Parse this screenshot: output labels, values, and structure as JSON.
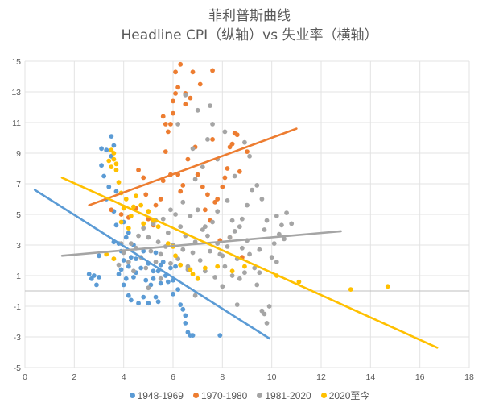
{
  "chart_data": {
    "type": "scatter",
    "title": "菲利普斯曲线",
    "subtitle": "Headline CPI（纵轴）vs 失业率（横轴）",
    "xlim": [
      0,
      18
    ],
    "ylim": [
      -5,
      15
    ],
    "x_ticks": [
      0,
      2,
      4,
      6,
      8,
      10,
      12,
      14,
      16,
      18
    ],
    "y_ticks": [
      -5,
      -3,
      -1,
      1,
      3,
      5,
      7,
      9,
      11,
      13,
      15
    ],
    "grid": true,
    "legend_position": "bottom",
    "series": [
      {
        "name": "1948-1969",
        "color": "#5B9BD5",
        "trendline": [
          [
            0.4,
            6.6
          ],
          [
            9.9,
            -3.1
          ]
        ],
        "points": [
          [
            2.6,
            1.1
          ],
          [
            2.7,
            0.8
          ],
          [
            2.8,
            1.0
          ],
          [
            2.9,
            0.4
          ],
          [
            3.0,
            2.3
          ],
          [
            3.0,
            0.9
          ],
          [
            3.1,
            9.3
          ],
          [
            3.2,
            7.5
          ],
          [
            3.3,
            9.2
          ],
          [
            3.4,
            6.8
          ],
          [
            3.5,
            10.1
          ],
          [
            3.5,
            8.8
          ],
          [
            3.6,
            9.5
          ],
          [
            3.6,
            3.2
          ],
          [
            3.7,
            6.5
          ],
          [
            3.7,
            4.3
          ],
          [
            3.8,
            3.1
          ],
          [
            3.8,
            1.1
          ],
          [
            3.9,
            2.6
          ],
          [
            3.9,
            1.4
          ],
          [
            4.0,
            0.4
          ],
          [
            4.0,
            2.0
          ],
          [
            4.1,
            0.8
          ],
          [
            4.1,
            3.5
          ],
          [
            4.2,
            -0.3
          ],
          [
            4.2,
            1.6
          ],
          [
            4.3,
            -0.6
          ],
          [
            4.3,
            2.2
          ],
          [
            4.4,
            0.9
          ],
          [
            4.4,
            3.0
          ],
          [
            4.5,
            1.2
          ],
          [
            4.5,
            2.1
          ],
          [
            4.6,
            -0.8
          ],
          [
            4.7,
            1.5
          ],
          [
            4.8,
            -0.4
          ],
          [
            4.9,
            0.7
          ],
          [
            5.0,
            -0.8
          ],
          [
            5.0,
            1.8
          ],
          [
            5.1,
            0.4
          ],
          [
            5.2,
            0.8
          ],
          [
            5.3,
            -0.4
          ],
          [
            5.3,
            2.5
          ],
          [
            5.4,
            1.3
          ],
          [
            5.4,
            -0.7
          ],
          [
            5.5,
            0.5
          ],
          [
            5.5,
            1.7
          ],
          [
            5.6,
            1.9
          ],
          [
            5.7,
            1.0
          ],
          [
            5.8,
            0.6
          ],
          [
            5.9,
            1.5
          ],
          [
            6.0,
            0.7
          ],
          [
            6.0,
            -0.2
          ],
          [
            6.1,
            1.6
          ],
          [
            6.2,
            0.1
          ],
          [
            6.3,
            -0.9
          ],
          [
            6.4,
            -1.2
          ],
          [
            6.5,
            -1.6
          ],
          [
            6.5,
            -2.1
          ],
          [
            6.6,
            -2.7
          ],
          [
            6.7,
            -2.9
          ],
          [
            6.8,
            -2.9
          ],
          [
            7.9,
            -2.9
          ],
          [
            4.0,
            4.5
          ],
          [
            3.6,
            5.2
          ],
          [
            4.2,
            3.8
          ],
          [
            4.8,
            2.6
          ],
          [
            5.2,
            1.3
          ],
          [
            3.3,
            6.0
          ],
          [
            3.1,
            8.2
          ]
        ]
      },
      {
        "name": "1970-1980",
        "color": "#ED7D31",
        "trendline": [
          [
            2.6,
            5.6
          ],
          [
            11.0,
            10.6
          ]
        ],
        "points": [
          [
            3.5,
            5.3
          ],
          [
            3.9,
            5.0
          ],
          [
            4.2,
            4.8
          ],
          [
            4.5,
            5.4
          ],
          [
            4.6,
            7.9
          ],
          [
            4.8,
            7.4
          ],
          [
            4.9,
            6.3
          ],
          [
            5.0,
            5.2
          ],
          [
            5.0,
            4.7
          ],
          [
            5.2,
            4.3
          ],
          [
            5.3,
            5.6
          ],
          [
            5.5,
            6.0
          ],
          [
            5.6,
            7.2
          ],
          [
            5.7,
            9.1
          ],
          [
            5.8,
            10.4
          ],
          [
            5.9,
            10.9
          ],
          [
            5.9,
            7.6
          ],
          [
            6.0,
            11.6
          ],
          [
            6.0,
            12.4
          ],
          [
            6.1,
            14.3
          ],
          [
            6.2,
            13.3
          ],
          [
            6.3,
            14.8
          ],
          [
            6.3,
            6.5
          ],
          [
            6.4,
            6.9
          ],
          [
            6.5,
            12.9
          ],
          [
            6.6,
            8.6
          ],
          [
            6.7,
            12.6
          ],
          [
            6.8,
            14.3
          ],
          [
            6.9,
            9.4
          ],
          [
            7.0,
            7.6
          ],
          [
            7.1,
            13.5
          ],
          [
            7.2,
            6.8
          ],
          [
            7.3,
            5.3
          ],
          [
            7.4,
            6.3
          ],
          [
            7.5,
            4.6
          ],
          [
            7.6,
            14.4
          ],
          [
            7.7,
            5.8
          ],
          [
            7.8,
            6.0
          ],
          [
            7.9,
            3.3
          ],
          [
            8.0,
            6.8
          ],
          [
            8.1,
            7.4
          ],
          [
            8.2,
            8.0
          ],
          [
            8.3,
            9.4
          ],
          [
            8.4,
            9.6
          ],
          [
            8.5,
            10.3
          ],
          [
            8.6,
            10.2
          ],
          [
            8.7,
            7.8
          ],
          [
            6.5,
            12.2
          ],
          [
            6.2,
            7.6
          ],
          [
            5.7,
            10.9
          ],
          [
            5.6,
            11.4
          ],
          [
            6.1,
            12.9
          ],
          [
            8.3,
            3.5
          ],
          [
            7.6,
            9.9
          ],
          [
            8.8,
            2.2
          ],
          [
            9.0,
            9.1
          ]
        ]
      },
      {
        "name": "1981-2020",
        "color": "#A5A5A5",
        "trendline": [
          [
            1.5,
            2.3
          ],
          [
            12.8,
            3.9
          ]
        ],
        "points": [
          [
            3.8,
            1.7
          ],
          [
            4.0,
            2.5
          ],
          [
            4.2,
            1.9
          ],
          [
            4.3,
            3.1
          ],
          [
            4.5,
            2.8
          ],
          [
            4.6,
            3.6
          ],
          [
            4.7,
            2.2
          ],
          [
            4.8,
            4.1
          ],
          [
            4.9,
            1.5
          ],
          [
            5.0,
            3.5
          ],
          [
            5.1,
            2.6
          ],
          [
            5.2,
            4.4
          ],
          [
            5.3,
            1.9
          ],
          [
            5.4,
            3.2
          ],
          [
            5.5,
            2.4
          ],
          [
            5.6,
            4.7
          ],
          [
            5.7,
            2.9
          ],
          [
            5.8,
            3.8
          ],
          [
            5.9,
            1.8
          ],
          [
            6.0,
            3.0
          ],
          [
            6.1,
            5.0
          ],
          [
            6.2,
            2.1
          ],
          [
            6.3,
            4.2
          ],
          [
            6.4,
            2.7
          ],
          [
            6.5,
            3.6
          ],
          [
            6.6,
            1.4
          ],
          [
            6.7,
            4.9
          ],
          [
            6.8,
            2.5
          ],
          [
            6.9,
            3.2
          ],
          [
            7.0,
            5.3
          ],
          [
            7.1,
            2.0
          ],
          [
            7.2,
            4.0
          ],
          [
            7.3,
            1.3
          ],
          [
            7.4,
            3.6
          ],
          [
            7.5,
            2.6
          ],
          [
            7.6,
            4.5
          ],
          [
            7.7,
            0.9
          ],
          [
            7.8,
            3.1
          ],
          [
            7.9,
            2.4
          ],
          [
            8.0,
            0.3
          ],
          [
            8.1,
            1.6
          ],
          [
            8.2,
            2.9
          ],
          [
            8.3,
            3.5
          ],
          [
            8.4,
            1.0
          ],
          [
            8.5,
            3.9
          ],
          [
            8.6,
            2.1
          ],
          [
            8.7,
            4.2
          ],
          [
            8.8,
            2.8
          ],
          [
            8.9,
            1.2
          ],
          [
            9.0,
            3.3
          ],
          [
            9.1,
            2.4
          ],
          [
            9.2,
            6.6
          ],
          [
            9.3,
            1.5
          ],
          [
            9.4,
            6.9
          ],
          [
            9.5,
            2.7
          ],
          [
            9.6,
            -1.3
          ],
          [
            9.7,
            -1.5
          ],
          [
            9.8,
            -2.1
          ],
          [
            9.9,
            -1.0
          ],
          [
            10.0,
            2.2
          ],
          [
            10.1,
            3.1
          ],
          [
            10.2,
            4.9
          ],
          [
            10.3,
            3.7
          ],
          [
            10.4,
            4.3
          ],
          [
            10.5,
            3.4
          ],
          [
            10.6,
            5.1
          ],
          [
            10.8,
            4.4
          ],
          [
            7.0,
            11.8
          ],
          [
            6.5,
            12.8
          ],
          [
            7.6,
            10.9
          ],
          [
            7.4,
            9.9
          ],
          [
            6.8,
            9.3
          ],
          [
            8.1,
            10.4
          ],
          [
            7.2,
            8.1
          ],
          [
            6.2,
            10.9
          ],
          [
            6.9,
            7.3
          ],
          [
            7.8,
            8.6
          ],
          [
            8.9,
            9.7
          ],
          [
            8.5,
            7.5
          ],
          [
            9.1,
            8.8
          ],
          [
            7.5,
            12.1
          ],
          [
            8.8,
            4.7
          ],
          [
            9.6,
            6.0
          ],
          [
            9.8,
            4.6
          ],
          [
            6.9,
            -0.3
          ],
          [
            8.6,
            -0.9
          ],
          [
            9.4,
            0.4
          ],
          [
            5.5,
            0.8
          ],
          [
            6.6,
            1.6
          ],
          [
            5.0,
            0.2
          ],
          [
            4.4,
            1.3
          ],
          [
            3.9,
            3.1
          ],
          [
            5.3,
            4.6
          ],
          [
            7.8,
            5.2
          ],
          [
            8.2,
            5.9
          ],
          [
            6.4,
            5.8
          ],
          [
            5.9,
            5.3
          ],
          [
            7.3,
            4.2
          ],
          [
            8.4,
            4.6
          ],
          [
            9.0,
            5.6
          ],
          [
            8.0,
            2.3
          ],
          [
            8.7,
            0.8
          ],
          [
            9.5,
            1.2
          ],
          [
            10.2,
            1.9
          ],
          [
            9.7,
            4.0
          ]
        ]
      },
      {
        "name": "2020至今",
        "color": "#FFC000",
        "trendline": [
          [
            1.5,
            7.4
          ],
          [
            16.7,
            -3.7
          ]
        ],
        "points": [
          [
            3.4,
            8.5
          ],
          [
            3.5,
            8.1
          ],
          [
            3.6,
            8.6
          ],
          [
            3.7,
            7.9
          ],
          [
            3.7,
            8.3
          ],
          [
            3.8,
            7.1
          ],
          [
            3.9,
            6.4
          ],
          [
            4.0,
            5.4
          ],
          [
            4.1,
            6.0
          ],
          [
            4.2,
            4.1
          ],
          [
            3.5,
            9.2
          ],
          [
            3.6,
            9.0
          ],
          [
            4.3,
            4.9
          ],
          [
            4.5,
            6.2
          ],
          [
            4.7,
            5.6
          ],
          [
            5.0,
            5.2
          ],
          [
            5.2,
            4.6
          ],
          [
            5.4,
            4.2
          ],
          [
            5.8,
            3.1
          ],
          [
            6.1,
            2.3
          ],
          [
            6.3,
            1.7
          ],
          [
            6.7,
            1.4
          ],
          [
            6.8,
            1.1
          ],
          [
            7.0,
            0.8
          ],
          [
            7.3,
            1.5
          ],
          [
            7.8,
            1.6
          ],
          [
            8.4,
            1.3
          ],
          [
            8.9,
            1.6
          ],
          [
            10.2,
            1.0
          ],
          [
            11.1,
            0.6
          ],
          [
            13.2,
            0.1
          ],
          [
            14.7,
            0.3
          ],
          [
            4.8,
            4.4
          ],
          [
            3.9,
            4.5
          ],
          [
            4.4,
            5.5
          ],
          [
            6.0,
            2.9
          ],
          [
            3.6,
            2.1
          ],
          [
            3.3,
            2.4
          ]
        ]
      }
    ]
  }
}
